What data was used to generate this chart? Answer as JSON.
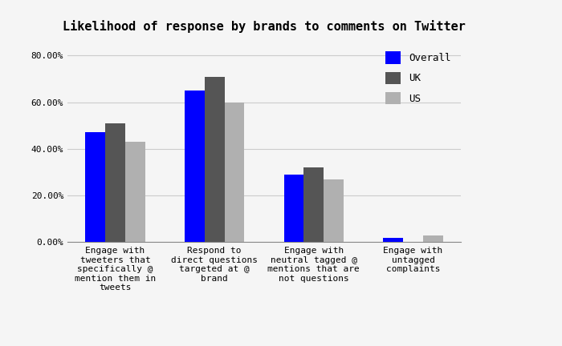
{
  "title": "Likelihood of response by brands to comments on Twitter",
  "categories": [
    "Engage with\ntweeters that\nspecifically @\nmention them in\ntweets",
    "Respond to\ndirect questions\ntargeted at @\nbrand",
    "Engage with\nneutral tagged @\nmentions that are\nnot questions",
    "Engage with\nuntagged\ncomplaints"
  ],
  "series": [
    {
      "label": "Overall",
      "color": "#0000ff",
      "values": [
        0.47,
        0.65,
        0.29,
        0.02
      ]
    },
    {
      "label": "UK",
      "color": "#555555",
      "values": [
        0.51,
        0.71,
        0.32,
        0.0
      ]
    },
    {
      "label": "US",
      "color": "#b0b0b0",
      "values": [
        0.43,
        0.6,
        0.27,
        0.03
      ]
    }
  ],
  "ylim": [
    0,
    0.86
  ],
  "yticks": [
    0.0,
    0.2,
    0.4,
    0.6,
    0.8
  ],
  "ytick_labels": [
    "0.00%",
    "20.00%",
    "40.00%",
    "60.00%",
    "80.00%"
  ],
  "background_color": "#f5f5f5",
  "grid_color": "#cccccc",
  "title_fontsize": 11,
  "tick_fontsize": 8,
  "legend_fontsize": 9,
  "bar_width": 0.2,
  "figsize": [
    7.0,
    4.32
  ],
  "dpi": 100
}
